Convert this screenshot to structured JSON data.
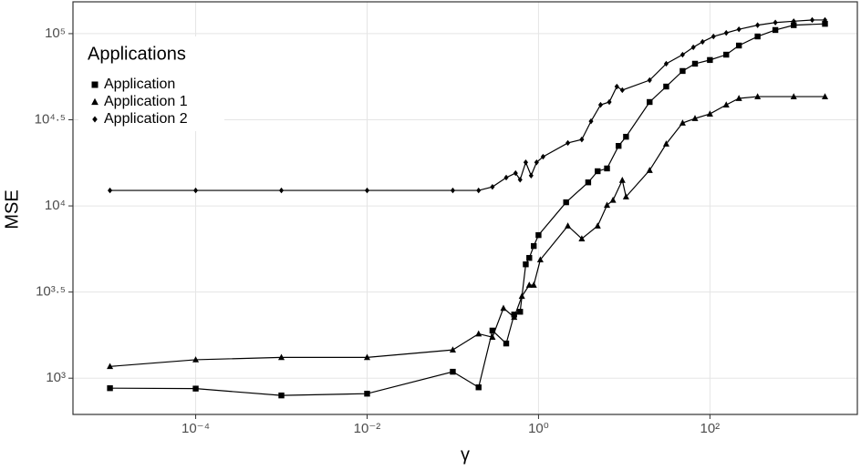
{
  "chart_data": {
    "type": "line",
    "x_label": "γ",
    "y_label": "MSE",
    "legend_title": "Applications",
    "legend_position": "top-left",
    "log_x": true,
    "log_y": true,
    "grid": true,
    "xlim": [
      3.7e-06,
      5250
    ],
    "ylim": [
      616,
      153000
    ],
    "xticks": [
      {
        "value": 0.0001,
        "label": "10⁻⁴"
      },
      {
        "value": 0.01,
        "label": "10⁻²"
      },
      {
        "value": 1,
        "label": "10⁰"
      },
      {
        "value": 100,
        "label": "10²"
      }
    ],
    "yticks": [
      {
        "value": 1000,
        "label": "10³"
      },
      {
        "value": 3162.28,
        "label": "10³·⁵"
      },
      {
        "value": 10000,
        "label": "10⁴"
      },
      {
        "value": 31622.8,
        "label": "10⁴·⁵"
      },
      {
        "value": 100000,
        "label": "10⁵"
      }
    ],
    "series": [
      {
        "name": "Application",
        "color": "#000000",
        "marker": "square",
        "x": [
          1e-05,
          0.0001,
          0.001,
          0.01,
          0.1,
          0.2,
          0.29,
          0.42,
          0.52,
          0.61,
          0.71,
          0.78,
          0.88,
          1,
          2.1,
          3.8,
          4.9,
          6.3,
          8.6,
          10.5,
          19.8,
          30.9,
          48,
          67,
          100,
          155,
          218,
          360,
          580,
          950,
          2200
        ],
        "values": [
          875,
          870,
          794,
          813,
          1090,
          885,
          1890,
          1590,
          2340,
          2430,
          4580,
          4990,
          5850,
          6770,
          10500,
          13700,
          15900,
          16500,
          22300,
          25200,
          40100,
          49300,
          60700,
          66900,
          70300,
          75500,
          85300,
          96300,
          105000,
          112000,
          114000
        ]
      },
      {
        "name": "Application 1",
        "color": "#000000",
        "marker": "triangle",
        "x": [
          1e-05,
          0.0001,
          0.001,
          0.01,
          0.1,
          0.2,
          0.29,
          0.39,
          0.52,
          0.64,
          0.78,
          0.88,
          1.05,
          2.2,
          3.2,
          4.9,
          6.3,
          7.4,
          9.5,
          10.5,
          19.8,
          30.9,
          48,
          67,
          100,
          155,
          218,
          360,
          950,
          2200
        ],
        "values": [
          1170,
          1280,
          1320,
          1320,
          1460,
          1810,
          1730,
          2550,
          2260,
          2990,
          3470,
          3470,
          4870,
          7660,
          6450,
          7660,
          10100,
          10800,
          14100,
          11300,
          16100,
          22900,
          30300,
          32200,
          34200,
          38600,
          42100,
          43100,
          43100,
          43100
        ]
      },
      {
        "name": "Application 2",
        "color": "#000000",
        "marker": "diamond",
        "x": [
          1e-05,
          0.0001,
          0.001,
          0.01,
          0.1,
          0.2,
          0.29,
          0.42,
          0.54,
          0.61,
          0.71,
          0.82,
          0.95,
          1.13,
          2.2,
          3.2,
          4.1,
          5.3,
          6.7,
          8.2,
          9.5,
          19.8,
          30.9,
          48,
          64,
          82,
          110,
          155,
          218,
          360,
          580,
          950,
          1560,
          2200
        ],
        "values": [
          12300,
          12300,
          12300,
          12300,
          12300,
          12300,
          12900,
          14600,
          15500,
          14200,
          17900,
          15000,
          17900,
          19300,
          23200,
          24300,
          31000,
          38600,
          40100,
          49300,
          47000,
          53700,
          66900,
          75500,
          83300,
          89600,
          96300,
          101000,
          106000,
          112000,
          116000,
          118000,
          120000,
          120000
        ]
      }
    ]
  }
}
